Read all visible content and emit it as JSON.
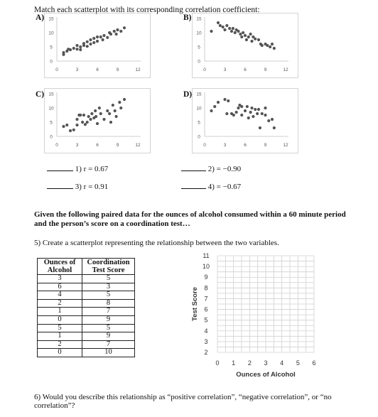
{
  "instructions": "Match each scatterplot with its corresponding correlation coefficient:",
  "panels": [
    {
      "label": "A)",
      "y_ticks": [
        "15",
        "10",
        "5",
        "0"
      ],
      "x_ticks": [
        "0",
        "3",
        "6",
        "9",
        "12"
      ],
      "points": [
        [
          1,
          2.3
        ],
        [
          1,
          3
        ],
        [
          1.5,
          3.5
        ],
        [
          1.7,
          4.2
        ],
        [
          2,
          4
        ],
        [
          2.5,
          4.5
        ],
        [
          3,
          4.2
        ],
        [
          3,
          5.5
        ],
        [
          3.5,
          4
        ],
        [
          3.5,
          5
        ],
        [
          4,
          5.5
        ],
        [
          4,
          6.2
        ],
        [
          4.5,
          5.2
        ],
        [
          4.5,
          6.8
        ],
        [
          5,
          6
        ],
        [
          5,
          7.5
        ],
        [
          5.5,
          6.5
        ],
        [
          5.5,
          8
        ],
        [
          6,
          7
        ],
        [
          6,
          8.5
        ],
        [
          6.5,
          8.5
        ],
        [
          6.8,
          7.5
        ],
        [
          7,
          9
        ],
        [
          7.5,
          8.3
        ],
        [
          7.8,
          10
        ],
        [
          8,
          9.5
        ],
        [
          8.5,
          10.5
        ],
        [
          8.8,
          9.5
        ],
        [
          9,
          11
        ],
        [
          9.5,
          10.5
        ],
        [
          10,
          11.7
        ]
      ]
    },
    {
      "label": "B)",
      "y_ticks": [
        "15",
        "10",
        "5",
        "0"
      ],
      "x_ticks": [
        "0",
        "3",
        "6",
        "9",
        "12"
      ],
      "points": [
        [
          1,
          10.5
        ],
        [
          2,
          13.5
        ],
        [
          2.3,
          12.5
        ],
        [
          2.7,
          12
        ],
        [
          3,
          11
        ],
        [
          3.3,
          12.5
        ],
        [
          3.7,
          11.5
        ],
        [
          4,
          10.5
        ],
        [
          4.2,
          11.5
        ],
        [
          4.5,
          10
        ],
        [
          4.7,
          11
        ],
        [
          5,
          10.5
        ],
        [
          5.3,
          9.5
        ],
        [
          5.5,
          8.5
        ],
        [
          5.7,
          10
        ],
        [
          6,
          9
        ],
        [
          6.2,
          7.5
        ],
        [
          6.5,
          8.5
        ],
        [
          6.8,
          9.5
        ],
        [
          7,
          7
        ],
        [
          7.2,
          8.5
        ],
        [
          7.5,
          7.8
        ],
        [
          8,
          7.5
        ],
        [
          8.3,
          6
        ],
        [
          8.5,
          5.5
        ],
        [
          9,
          6
        ],
        [
          9.3,
          5.5
        ],
        [
          9.7,
          5
        ],
        [
          10,
          6
        ],
        [
          10.3,
          4.5
        ]
      ]
    },
    {
      "label": "C)",
      "y_ticks": [
        "15",
        "10",
        "5",
        "0"
      ],
      "x_ticks": [
        "0",
        "3",
        "6",
        "9",
        "12"
      ],
      "points": [
        [
          1,
          3.5
        ],
        [
          1.5,
          4
        ],
        [
          2,
          2
        ],
        [
          2.5,
          2.3
        ],
        [
          3,
          4
        ],
        [
          3,
          6
        ],
        [
          3.3,
          7.5
        ],
        [
          3.5,
          7.5
        ],
        [
          3.8,
          5
        ],
        [
          4,
          7.5
        ],
        [
          4.2,
          4.2
        ],
        [
          4.5,
          5
        ],
        [
          4.7,
          7
        ],
        [
          5,
          6
        ],
        [
          5.2,
          8
        ],
        [
          5.5,
          6.5
        ],
        [
          5.7,
          9
        ],
        [
          5.8,
          7
        ],
        [
          6,
          4.5
        ],
        [
          6.3,
          10
        ],
        [
          6.5,
          8
        ],
        [
          7,
          6
        ],
        [
          7.5,
          9
        ],
        [
          7.8,
          8
        ],
        [
          8,
          5
        ],
        [
          8.3,
          11
        ],
        [
          8.6,
          9
        ],
        [
          8.8,
          7
        ],
        [
          9.3,
          12
        ],
        [
          9.5,
          10
        ],
        [
          10,
          13
        ]
      ]
    },
    {
      "label": "D)",
      "y_ticks": [
        "15",
        "10",
        "5",
        "0"
      ],
      "x_ticks": [
        "0",
        "3",
        "6",
        "9",
        "12"
      ],
      "points": [
        [
          1,
          9
        ],
        [
          1.5,
          10.5
        ],
        [
          2,
          12
        ],
        [
          3,
          13
        ],
        [
          3.3,
          8
        ],
        [
          3.5,
          12.5
        ],
        [
          4,
          8
        ],
        [
          4.3,
          7.5
        ],
        [
          4.7,
          8.5
        ],
        [
          5,
          10
        ],
        [
          5.2,
          11
        ],
        [
          5.5,
          10.5
        ],
        [
          5.5,
          7.5
        ],
        [
          6,
          9
        ],
        [
          6.3,
          10.5
        ],
        [
          6.5,
          6.5
        ],
        [
          6.8,
          8.5
        ],
        [
          7,
          10
        ],
        [
          7.2,
          7
        ],
        [
          7.5,
          9.5
        ],
        [
          7.8,
          8
        ],
        [
          8,
          9.5
        ],
        [
          8.2,
          3
        ],
        [
          8.5,
          8
        ],
        [
          9,
          7.5
        ],
        [
          9,
          10
        ],
        [
          9.5,
          5.5
        ],
        [
          10,
          6
        ],
        [
          10.3,
          3
        ]
      ]
    }
  ],
  "matches": [
    {
      "text": "1) r = 0.67"
    },
    {
      "text": "2) = −0.90"
    },
    {
      "text": "3) r = 0.91"
    },
    {
      "text": "4) = −0.67"
    }
  ],
  "intro": "Given the following paired data for the ounces of alcohol consumed within a 60 minute period and the person’s score on a coordination test…",
  "q5": "5) Create a scatterplot representing the relationship between the two variables.",
  "table": {
    "headers": [
      "Ounces of Alcohol",
      "Coordination Test Score"
    ],
    "rows": [
      [
        "3",
        "5"
      ],
      [
        "6",
        "3"
      ],
      [
        "4",
        "5"
      ],
      [
        "2",
        "8"
      ],
      [
        "1",
        "7"
      ],
      [
        "0",
        "9"
      ],
      [
        "5",
        "5"
      ],
      [
        "1",
        "9"
      ],
      [
        "2",
        "7"
      ],
      [
        "0",
        "10"
      ]
    ]
  },
  "grid": {
    "y_label": "Test Score",
    "x_label": "Ounces of Alcohol",
    "y_ticks": [
      "11",
      "10",
      "9",
      "8",
      "7",
      "6",
      "5",
      "4",
      "3",
      "2"
    ],
    "x_ticks": [
      "0",
      "1",
      "2",
      "3",
      "4",
      "5",
      "6"
    ]
  },
  "q6": "6) Would you describe this relationship as “positive correlation”, “negative correlation”, or “no correlation”?"
}
